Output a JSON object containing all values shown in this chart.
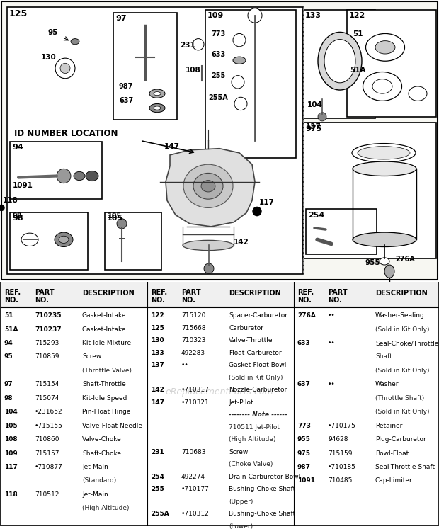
{
  "bg_color": "#ffffff",
  "col1_parts": [
    [
      "51",
      "710235",
      "Gasket-Intake",
      true
    ],
    [
      "51A",
      "710237",
      "Gasket-Intake",
      true
    ],
    [
      "94",
      "715293",
      "Kit-Idle Mixture",
      false
    ],
    [
      "95",
      "710859",
      "Screw",
      false
    ],
    [
      "",
      "",
      "(Throttle Valve)",
      false
    ],
    [
      "97",
      "715154",
      "Shaft-Throttle",
      false
    ],
    [
      "98",
      "715074",
      "Kit-Idle Speed",
      false
    ],
    [
      "104",
      "•231652",
      "Pin-Float Hinge",
      false
    ],
    [
      "105",
      "•715155",
      "Valve-Float Needle",
      false
    ],
    [
      "108",
      "710860",
      "Valve-Choke",
      false
    ],
    [
      "109",
      "715157",
      "Shaft-Choke",
      false
    ],
    [
      "117",
      "•710877",
      "Jet-Main",
      false
    ],
    [
      "",
      "",
      "(Standard)",
      false
    ],
    [
      "118",
      "710512",
      "Jet-Main",
      false
    ],
    [
      "",
      "",
      "(High Altitude)",
      false
    ]
  ],
  "col2_parts": [
    [
      "122",
      "715120",
      "Spacer-Carburetor",
      false
    ],
    [
      "125",
      "715668",
      "Carburetor",
      false
    ],
    [
      "130",
      "710323",
      "Valve-Throttle",
      false
    ],
    [
      "133",
      "492283",
      "Float-Carburetor",
      false
    ],
    [
      "137",
      "••",
      "Gasket-Float Bowl",
      false
    ],
    [
      "",
      "",
      "(Sold in Kit Only)",
      false
    ],
    [
      "142",
      "•710317",
      "Nozzle-Carburetor",
      false
    ],
    [
      "147",
      "•710321",
      "Jet-Pilot",
      false
    ],
    [
      "",
      "",
      "-------- Note ------",
      true
    ],
    [
      "",
      "",
      "710511 Jet-Pilot",
      false
    ],
    [
      "",
      "",
      "(High Altitude)",
      false
    ],
    [
      "231",
      "710683",
      "Screw",
      false
    ],
    [
      "",
      "",
      "(Choke Valve)",
      false
    ],
    [
      "254",
      "492274",
      "Drain-Carburetor Bowl",
      false
    ],
    [
      "255",
      "•710177",
      "Bushing-Choke Shaft",
      false
    ],
    [
      "",
      "",
      "(Upper)",
      false
    ],
    [
      "255A",
      "•710312",
      "Bushing-Choke Shaft",
      false
    ],
    [
      "",
      "",
      "(Lower)",
      false
    ]
  ],
  "col3_parts": [
    [
      "276A",
      "••",
      "Washer-Sealing",
      false
    ],
    [
      "",
      "",
      "(Sold in Kit Only)",
      false
    ],
    [
      "633",
      "••",
      "Seal-Choke/Throttle",
      false
    ],
    [
      "",
      "",
      "Shaft",
      false
    ],
    [
      "",
      "",
      "(Sold in Kit Only)",
      false
    ],
    [
      "637",
      "••",
      "Washer",
      false
    ],
    [
      "",
      "",
      "(Throttle Shaft)",
      false
    ],
    [
      "",
      "",
      "(Sold in Kit Only)",
      false
    ],
    [
      "773",
      "•710175",
      "Retainer",
      false
    ],
    [
      "955",
      "94628",
      "Plug-Carburetor",
      false
    ],
    [
      "975",
      "715159",
      "Bowl-Float",
      false
    ],
    [
      "987",
      "•710185",
      "Seal-Throttle Shaft",
      false
    ],
    [
      "1091",
      "710485",
      "Cap-Limiter",
      false
    ]
  ]
}
